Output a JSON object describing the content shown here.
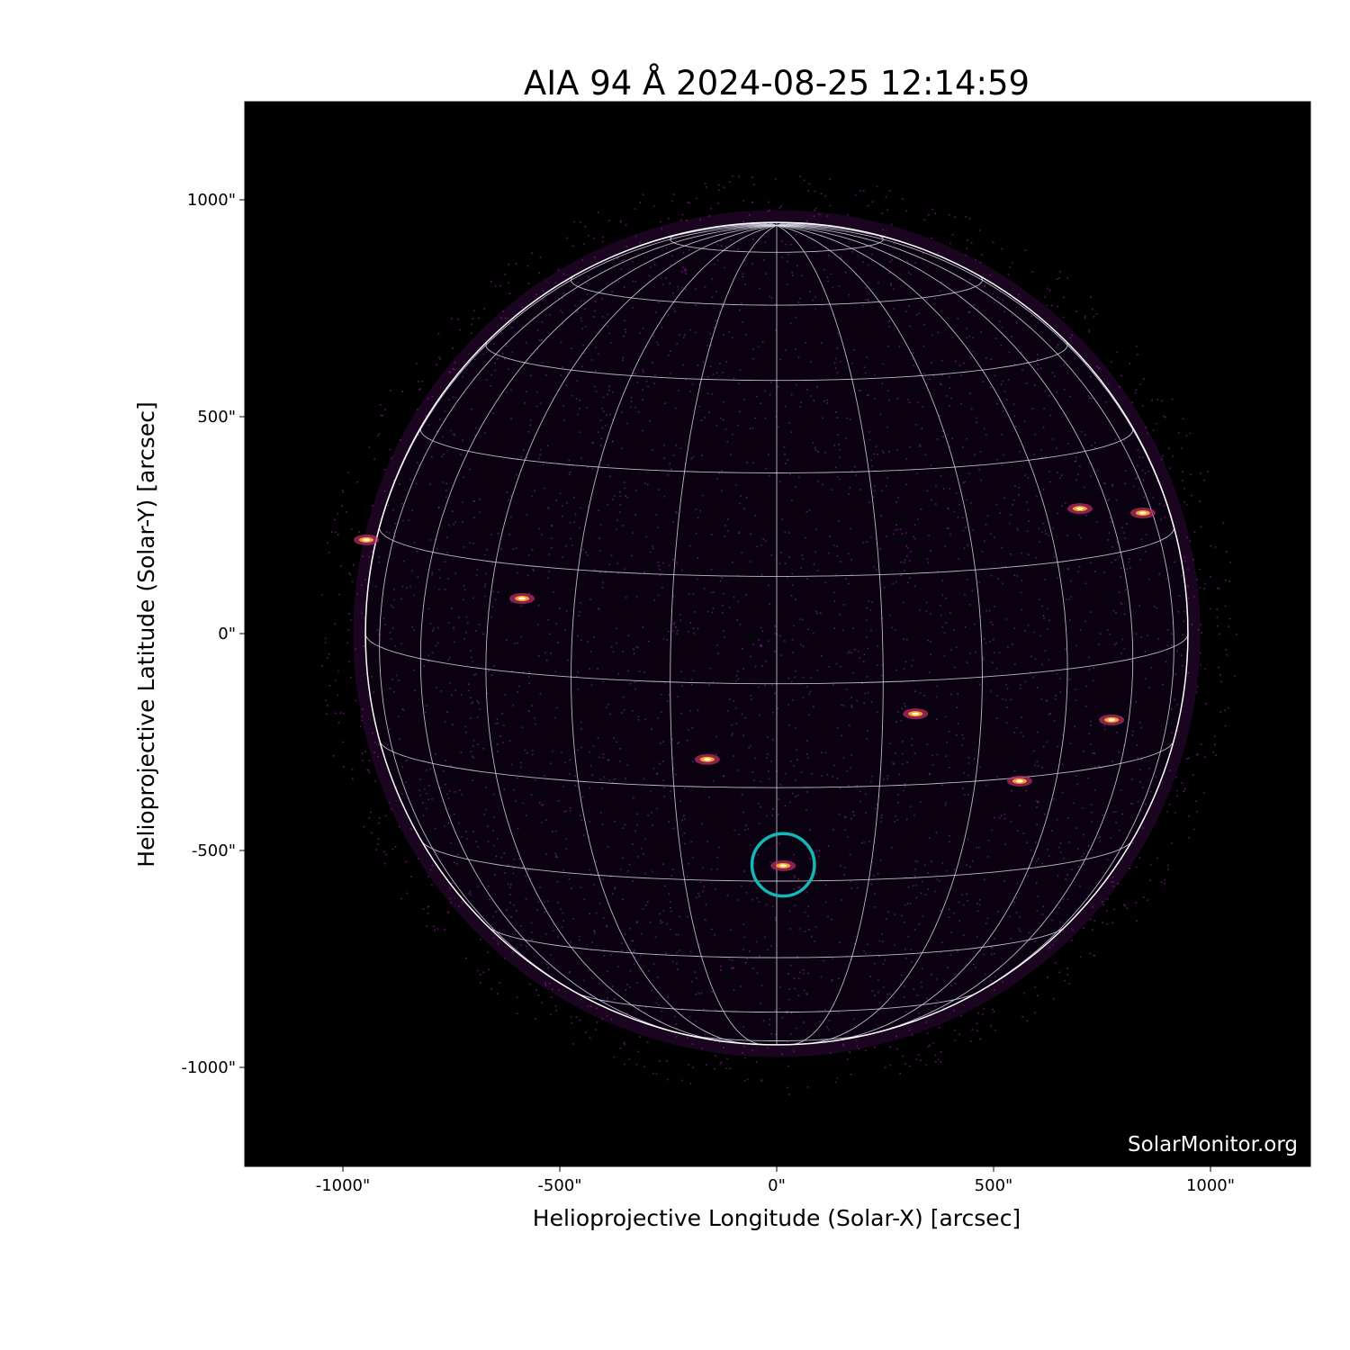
{
  "chart_data": {
    "type": "heatmap",
    "title": "AIA 94 Å 2024-08-25 12:14:59",
    "xlabel": "Helioprojective Longitude (Solar-X) [arcsec]",
    "ylabel": "Helioprojective Latitude (Solar-Y) [arcsec]",
    "xlim": [
      -1228,
      1228
    ],
    "ylim": [
      -1228,
      1228
    ],
    "xticks": [
      -1000,
      -500,
      0,
      500,
      1000
    ],
    "xtick_labels": [
      "-1000\"",
      "-500\"",
      "0\"",
      "500\"",
      "1000\""
    ],
    "yticks": [
      1000,
      500,
      0,
      -500,
      -1000
    ],
    "ytick_labels": [
      "1000\"",
      "500\"",
      "0\"",
      "-500\"",
      "-1000\""
    ],
    "colormap": "inferno",
    "background_color": "#000000",
    "grid_color": "#d8d8e8",
    "limb_color": "#ffffff",
    "grid_spacing_deg": 15,
    "solar_radius_arcsec": 948,
    "b0_deg": 7,
    "bright_regions": [
      {
        "x": -946,
        "y": 216
      },
      {
        "x": -587,
        "y": 81
      },
      {
        "x": -160,
        "y": -290
      },
      {
        "x": 320,
        "y": -185
      },
      {
        "x": 772,
        "y": -199
      },
      {
        "x": 844,
        "y": 278
      },
      {
        "x": 699,
        "y": 288
      },
      {
        "x": 560,
        "y": -340
      },
      {
        "x": 15,
        "y": -535
      }
    ],
    "highlight": {
      "x": 15,
      "y": -533,
      "radius": 72,
      "color": "#14b8b8"
    },
    "watermark": "SolarMonitor.org"
  }
}
